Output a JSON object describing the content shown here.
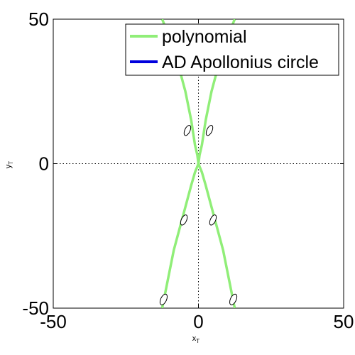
{
  "chart_data": {
    "type": "line",
    "title": "",
    "xlabel": "x",
    "xlabel_sub": "T",
    "ylabel": "y",
    "ylabel_sub": "T",
    "xlim": [
      -50,
      50
    ],
    "ylim": [
      -50,
      50
    ],
    "x_ticks": [
      -50,
      0,
      50
    ],
    "y_ticks": [
      -50,
      0,
      50
    ],
    "x_tick_labels": [
      "-50",
      "0",
      "50"
    ],
    "y_tick_labels": [
      "-50",
      "0",
      "50"
    ],
    "grid": false,
    "zero_lines": true,
    "legend": {
      "placement": "top-right",
      "entries": [
        {
          "label": "polynomial",
          "color": "#90ee78"
        },
        {
          "label": "AD Apollonius circle",
          "color": "#0000dd"
        }
      ]
    },
    "series": [
      {
        "name": "polynomial",
        "color": "#90ee78",
        "branches": [
          {
            "x": [
              -12.5,
              -11.5,
              -8.5,
              -4.5,
              -2.5,
              -1.2,
              -0.4,
              0.0
            ],
            "y": [
              -50,
              -45,
              -30,
              -15,
              -7.5,
              -3.0,
              -1.0,
              0
            ]
          },
          {
            "x": [
              12.5,
              11.5,
              8.5,
              4.5,
              2.5,
              1.2,
              0.4,
              0.0
            ],
            "y": [
              -50,
              -45,
              -30,
              -15,
              -7.5,
              -3.0,
              -1.0,
              0
            ]
          },
          {
            "x": [
              0.0,
              -0.4,
              -1.2,
              -2.5,
              -4.5,
              -8.5,
              -12.5
            ],
            "y": [
              0,
              3.0,
              6.5,
              15,
              25,
              40,
              50
            ]
          },
          {
            "x": [
              0.0,
              0.4,
              1.2,
              2.5,
              4.5,
              8.5,
              12.5
            ],
            "y": [
              0,
              3.0,
              6.5,
              15,
              25,
              40,
              50
            ]
          }
        ]
      },
      {
        "name": "AD Apollonius circle",
        "color": "#0000dd",
        "circles": [
          {
            "cx": -3.8,
            "cy": 11.5,
            "rx": 0.9,
            "ry": 1.9
          },
          {
            "cx": 3.8,
            "cy": 11.5,
            "rx": 0.9,
            "ry": 1.9
          },
          {
            "cx": -5.0,
            "cy": -19.5,
            "rx": 0.9,
            "ry": 1.9
          },
          {
            "cx": 5.0,
            "cy": -19.5,
            "rx": 0.9,
            "ry": 1.9
          },
          {
            "cx": -12.0,
            "cy": -47.0,
            "rx": 1.0,
            "ry": 2.0
          },
          {
            "cx": 12.0,
            "cy": -47.0,
            "rx": 1.0,
            "ry": 2.0
          }
        ]
      }
    ]
  }
}
